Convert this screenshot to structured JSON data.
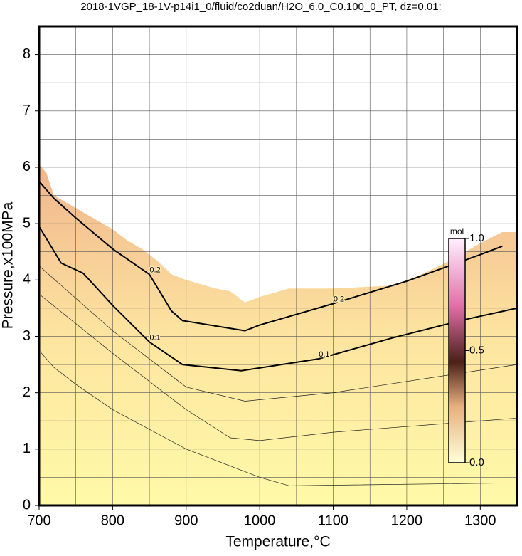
{
  "chart_data": {
    "type": "contour",
    "title": "2018-1VGP_18-1V-p14i1_0/fluid/co2duan/H2O_6.0_C0.100_0_PT, dz=0.01:",
    "xlabel": "Temperature,°C",
    "ylabel": "Pressure,x100MPa",
    "xlim": [
      700,
      1350
    ],
    "ylim": [
      0,
      8.5
    ],
    "xticks": [
      700,
      800,
      900,
      1000,
      1100,
      1200,
      1300
    ],
    "yticks": [
      0,
      1,
      2,
      3,
      4,
      5,
      6,
      7,
      8
    ],
    "xgrid": [
      750,
      800,
      850,
      900,
      950,
      1000,
      1050,
      1100,
      1150,
      1200,
      1250,
      1300
    ],
    "ygrid": [
      0.5,
      1,
      1.5,
      2,
      2.5,
      3,
      3.5,
      4,
      4.5,
      5,
      5.5,
      6,
      6.5,
      7,
      7.5,
      8
    ],
    "boundary": {
      "x": [
        700,
        710,
        720,
        740,
        760,
        780,
        800,
        820,
        840,
        860,
        880,
        900,
        940,
        960,
        980,
        1000,
        1040,
        1100,
        1180,
        1220,
        1260,
        1300,
        1330,
        1350
      ],
      "y": [
        6.05,
        5.9,
        5.5,
        5.35,
        5.2,
        5.05,
        4.9,
        4.7,
        4.55,
        4.35,
        4.1,
        4.0,
        3.85,
        3.8,
        3.6,
        3.7,
        3.85,
        3.85,
        3.9,
        4.1,
        4.35,
        4.65,
        4.85,
        4.85
      ]
    },
    "contours": [
      {
        "level": 0.2,
        "x": [
          700,
          720,
          750,
          800,
          850,
          880,
          895,
          980,
          1000,
          1100,
          1200,
          1300,
          1330
        ],
        "y": [
          5.75,
          5.45,
          5.1,
          4.55,
          4.1,
          3.45,
          3.28,
          3.1,
          3.2,
          3.58,
          3.98,
          4.45,
          4.6
        ]
      },
      {
        "level": 0.1,
        "x": [
          700,
          730,
          760,
          800,
          850,
          895,
          975,
          1080,
          1180,
          1280,
          1350
        ],
        "y": [
          4.95,
          4.3,
          4.12,
          3.55,
          2.9,
          2.5,
          2.39,
          2.6,
          2.97,
          3.3,
          3.5
        ]
      }
    ],
    "thin_contours": [
      {
        "x": [
          700,
          720,
          750,
          800,
          900,
          1000,
          1040,
          1350
        ],
        "y": [
          2.75,
          2.45,
          2.15,
          1.7,
          1.0,
          0.5,
          0.35,
          0.4
        ]
      },
      {
        "x": [
          700,
          800,
          900,
          960,
          1000,
          1100,
          1350
        ],
        "y": [
          3.75,
          2.7,
          1.7,
          1.2,
          1.15,
          1.3,
          1.55
        ]
      },
      {
        "x": [
          700,
          800,
          900,
          980,
          1100,
          1350
        ],
        "y": [
          4.25,
          3.1,
          2.1,
          1.85,
          2.0,
          2.5
        ]
      }
    ],
    "colorbar": {
      "label": "mol",
      "lim": [
        0,
        1
      ],
      "ticks": [
        {
          "value": 0,
          "label": "0.0"
        },
        {
          "value": 0.5,
          "label": "0.5"
        },
        {
          "value": 1,
          "label": "1.0"
        }
      ]
    }
  }
}
